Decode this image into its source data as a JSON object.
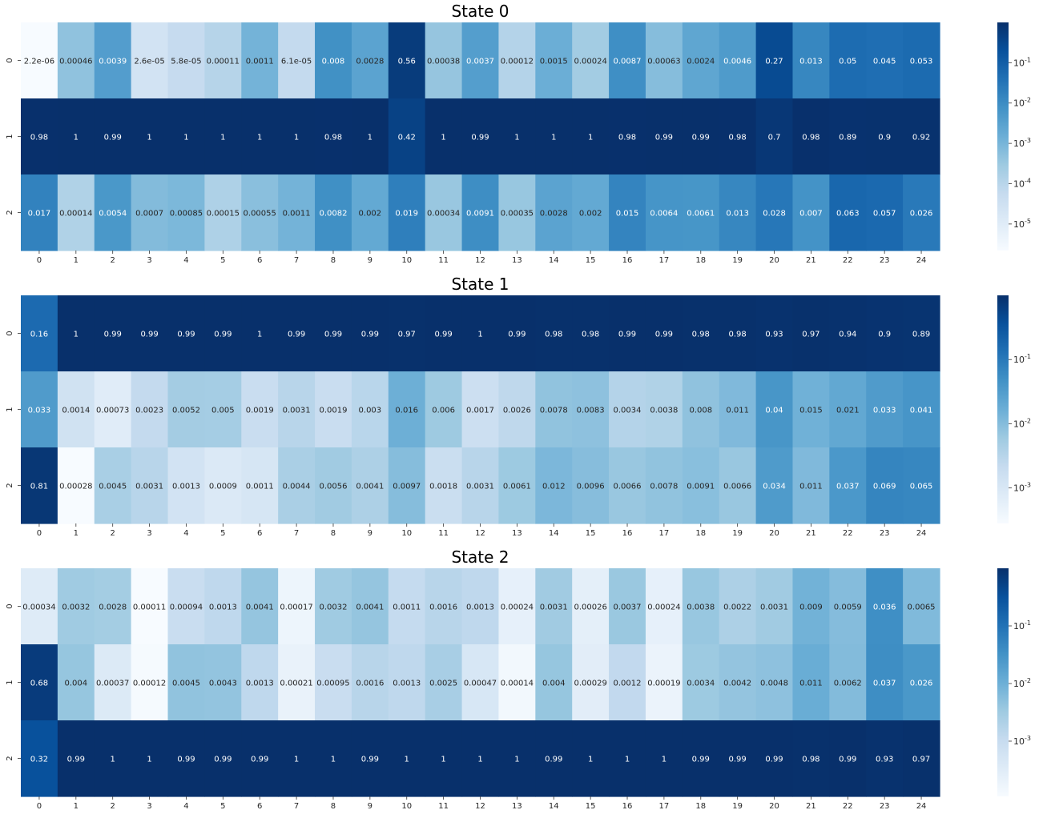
{
  "chart_data": [
    {
      "type": "heatmap",
      "title": "State 0",
      "x_ticks": [
        "0",
        "1",
        "2",
        "3",
        "4",
        "5",
        "6",
        "7",
        "8",
        "9",
        "10",
        "11",
        "12",
        "13",
        "14",
        "15",
        "16",
        "17",
        "18",
        "19",
        "20",
        "21",
        "22",
        "23",
        "24"
      ],
      "y_ticks": [
        "0",
        "1",
        "2"
      ],
      "color_scale": "log",
      "colormap": "Blues",
      "colorbar": {
        "vmin": 2.2e-06,
        "vmax": 1,
        "ticks": [
          1e-05,
          0.0001,
          0.001,
          0.01,
          0.1
        ],
        "tick_labels": [
          "10^{-5}",
          "10^{-4}",
          "10^{-3}",
          "10^{-2}",
          "10^{-1}"
        ]
      },
      "labels": [
        [
          "2.2e-06",
          "0.00046",
          "0.0039",
          "2.6e-05",
          "5.8e-05",
          "0.00011",
          "0.0011",
          "6.1e-05",
          "0.008",
          "0.0028",
          "0.56",
          "0.00038",
          "0.0037",
          "0.00012",
          "0.0015",
          "0.00024",
          "0.0087",
          "0.00063",
          "0.0024",
          "0.0046",
          "0.27",
          "0.013",
          "0.05",
          "0.045",
          "0.053"
        ],
        [
          "0.98",
          "1",
          "0.99",
          "1",
          "1",
          "1",
          "1",
          "1",
          "0.98",
          "1",
          "0.42",
          "1",
          "0.99",
          "1",
          "1",
          "1",
          "0.98",
          "0.99",
          "0.99",
          "0.98",
          "0.7",
          "0.98",
          "0.89",
          "0.9",
          "0.92"
        ],
        [
          "0.017",
          "0.00014",
          "0.0054",
          "0.0007",
          "0.00085",
          "0.00015",
          "0.00055",
          "0.0011",
          "0.0082",
          "0.002",
          "0.019",
          "0.00034",
          "0.0091",
          "0.00035",
          "0.0028",
          "0.002",
          "0.015",
          "0.0064",
          "0.0061",
          "0.013",
          "0.028",
          "0.007",
          "0.063",
          "0.057",
          "0.026"
        ]
      ]
    },
    {
      "type": "heatmap",
      "title": "State 1",
      "x_ticks": [
        "0",
        "1",
        "2",
        "3",
        "4",
        "5",
        "6",
        "7",
        "8",
        "9",
        "10",
        "11",
        "12",
        "13",
        "14",
        "15",
        "16",
        "17",
        "18",
        "19",
        "20",
        "21",
        "22",
        "23",
        "24"
      ],
      "y_ticks": [
        "0",
        "1",
        "2"
      ],
      "color_scale": "log",
      "colormap": "Blues",
      "colorbar": {
        "vmin": 0.00028,
        "vmax": 1,
        "ticks": [
          0.001,
          0.01,
          0.1
        ],
        "tick_labels": [
          "10^{-3}",
          "10^{-2}",
          "10^{-1}"
        ]
      },
      "labels": [
        [
          "0.16",
          "1",
          "0.99",
          "0.99",
          "0.99",
          "0.99",
          "1",
          "0.99",
          "0.99",
          "0.99",
          "0.97",
          "0.99",
          "1",
          "0.99",
          "0.98",
          "0.98",
          "0.99",
          "0.99",
          "0.98",
          "0.98",
          "0.93",
          "0.97",
          "0.94",
          "0.9",
          "0.89"
        ],
        [
          "0.033",
          "0.0014",
          "0.00073",
          "0.0023",
          "0.0052",
          "0.005",
          "0.0019",
          "0.0031",
          "0.0019",
          "0.003",
          "0.016",
          "0.006",
          "0.0017",
          "0.0026",
          "0.0078",
          "0.0083",
          "0.0034",
          "0.0038",
          "0.008",
          "0.011",
          "0.04",
          "0.015",
          "0.021",
          "0.033",
          "0.041"
        ],
        [
          "0.81",
          "0.00028",
          "0.0045",
          "0.0031",
          "0.0013",
          "0.0009",
          "0.0011",
          "0.0044",
          "0.0056",
          "0.0041",
          "0.0097",
          "0.0018",
          "0.0031",
          "0.0061",
          "0.012",
          "0.0096",
          "0.0066",
          "0.0078",
          "0.0091",
          "0.0066",
          "0.034",
          "0.011",
          "0.037",
          "0.069",
          "0.065"
        ]
      ]
    },
    {
      "type": "heatmap",
      "title": "State 2",
      "x_ticks": [
        "0",
        "1",
        "2",
        "3",
        "4",
        "5",
        "6",
        "7",
        "8",
        "9",
        "10",
        "11",
        "12",
        "13",
        "14",
        "15",
        "16",
        "17",
        "18",
        "19",
        "20",
        "21",
        "22",
        "23",
        "24"
      ],
      "y_ticks": [
        "0",
        "1",
        "2"
      ],
      "color_scale": "log",
      "colormap": "Blues",
      "colorbar": {
        "vmin": 0.00011,
        "vmax": 1,
        "ticks": [
          0.001,
          0.01,
          0.1
        ],
        "tick_labels": [
          "10^{-3}",
          "10^{-2}",
          "10^{-1}"
        ]
      },
      "labels": [
        [
          "0.00034",
          "0.0032",
          "0.0028",
          "0.00011",
          "0.00094",
          "0.0013",
          "0.0041",
          "0.00017",
          "0.0032",
          "0.0041",
          "0.0011",
          "0.0016",
          "0.0013",
          "0.00024",
          "0.0031",
          "0.00026",
          "0.0037",
          "0.00024",
          "0.0038",
          "0.0022",
          "0.0031",
          "0.009",
          "0.0059",
          "0.036",
          "0.0065"
        ],
        [
          "0.68",
          "0.004",
          "0.00037",
          "0.00012",
          "0.0045",
          "0.0043",
          "0.0013",
          "0.00021",
          "0.00095",
          "0.0016",
          "0.0013",
          "0.0025",
          "0.00047",
          "0.00014",
          "0.004",
          "0.00029",
          "0.0012",
          "0.00019",
          "0.0034",
          "0.0042",
          "0.0048",
          "0.011",
          "0.0062",
          "0.037",
          "0.026"
        ],
        [
          "0.32",
          "0.99",
          "1",
          "1",
          "0.99",
          "0.99",
          "0.99",
          "1",
          "1",
          "0.99",
          "1",
          "1",
          "1",
          "1",
          "0.99",
          "1",
          "1",
          "1",
          "0.99",
          "0.99",
          "0.99",
          "0.98",
          "0.99",
          "0.93",
          "0.97"
        ]
      ]
    }
  ]
}
